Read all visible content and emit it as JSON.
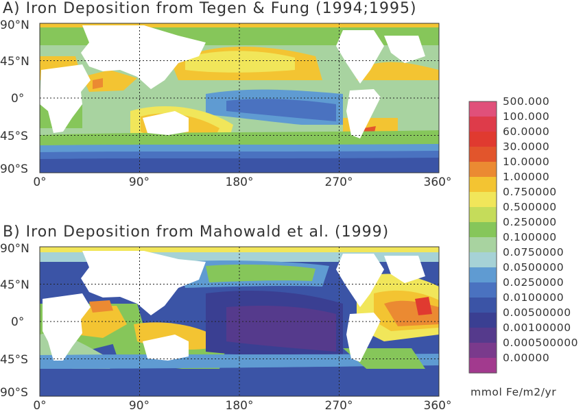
{
  "panels": [
    {
      "id": "a",
      "title": "A) Iron Deposition from Tegen & Fung (1994;1995)",
      "lat_labels": [
        "90°N",
        "45°N",
        "0°",
        "45°S",
        "90°S"
      ],
      "lon_labels": [
        "0°",
        "90°",
        "180°",
        "270°",
        "360°"
      ]
    },
    {
      "id": "b",
      "title": "B) Iron Deposition from Mahowald et al. (1999)",
      "lat_labels": [
        "90°N",
        "45°N",
        "0°",
        "45°S",
        "90°S"
      ],
      "lon_labels": [
        "0°",
        "90°",
        "180°",
        "270°",
        "360°"
      ]
    }
  ],
  "colorbar": {
    "levels": [
      {
        "label": "500.000",
        "color": "#e0507a"
      },
      {
        "label": "100.000",
        "color": "#de3b4a"
      },
      {
        "label": "60.0000",
        "color": "#e03a30"
      },
      {
        "label": "30.0000",
        "color": "#e2552c"
      },
      {
        "label": "10.0000",
        "color": "#eb8a32"
      },
      {
        "label": "1.00000",
        "color": "#f3c432"
      },
      {
        "label": "0.750000",
        "color": "#f1e65a"
      },
      {
        "label": "0.500000",
        "color": "#c5dc5a"
      },
      {
        "label": "0.250000",
        "color": "#86c65a"
      },
      {
        "label": "0.100000",
        "color": "#a8d3a0"
      },
      {
        "label": "0.0750000",
        "color": "#a6d2d6"
      },
      {
        "label": "0.0500000",
        "color": "#5f9bd2"
      },
      {
        "label": "0.0250000",
        "color": "#4a72c0"
      },
      {
        "label": "0.0100000",
        "color": "#3b54a6"
      },
      {
        "label": "0.00500000",
        "color": "#3a3f92"
      },
      {
        "label": "0.00100000",
        "color": "#553a8c"
      },
      {
        "label": "0.000500000",
        "color": "#7a3a8c"
      },
      {
        "label": "0.00000",
        "color": "#a23a8e"
      }
    ],
    "units": "mmol Fe/m2/yr"
  }
}
